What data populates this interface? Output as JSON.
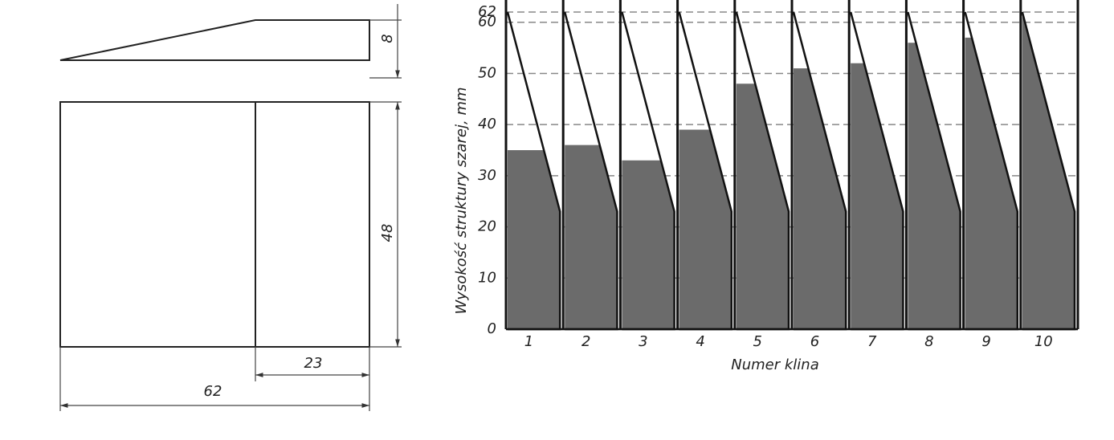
{
  "drawing": {
    "dimensions": {
      "thickness": 8,
      "width": 48,
      "flat_length": 23,
      "length": 62
    }
  },
  "chart_data": {
    "type": "wedge",
    "y_label": "Wysokość struktury szarej, mm",
    "x_label": "Numer klina",
    "categories": [
      "1",
      "2",
      "3",
      "4",
      "5",
      "6",
      "7",
      "8",
      "9",
      "10"
    ],
    "values": [
      35,
      36,
      33,
      39,
      48,
      51,
      52,
      56,
      57,
      61
    ],
    "color": "#6b6b6b",
    "ylim": [
      0,
      62
    ],
    "yticks": [
      0,
      10,
      20,
      30,
      40,
      50,
      60,
      62
    ],
    "grid": true
  }
}
